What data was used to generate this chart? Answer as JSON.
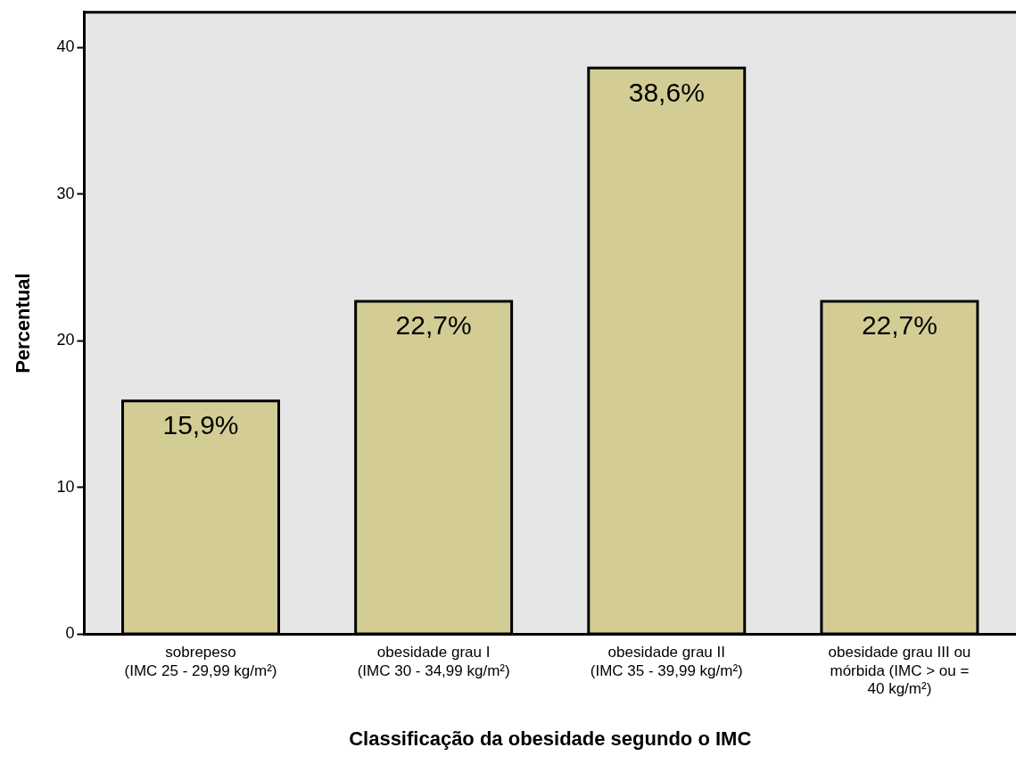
{
  "chart_data": {
    "type": "bar",
    "xlabel": "Classificação da obesidade segundo o IMC",
    "ylabel": "Percentual",
    "categories": [
      "sobrepeso\n(IMC 25 - 29,99 kg/m²)",
      "obesidade grau I\n(IMC 30 - 34,99 kg/m²)",
      "obesidade grau II\n(IMC 35 - 39,99 kg/m²)",
      "obesidade grau III ou\nmórbida (IMC > ou =\n40 kg/m²)"
    ],
    "values": [
      15.9,
      22.7,
      38.6,
      22.7
    ],
    "value_labels": [
      "15,9%",
      "22,7%",
      "38,6%",
      "22,7%"
    ],
    "color": "#d3cd95",
    "ylim": [
      0,
      42.4
    ],
    "yticks": [
      0,
      10,
      20,
      30,
      40
    ],
    "grid": false,
    "legend": false
  }
}
